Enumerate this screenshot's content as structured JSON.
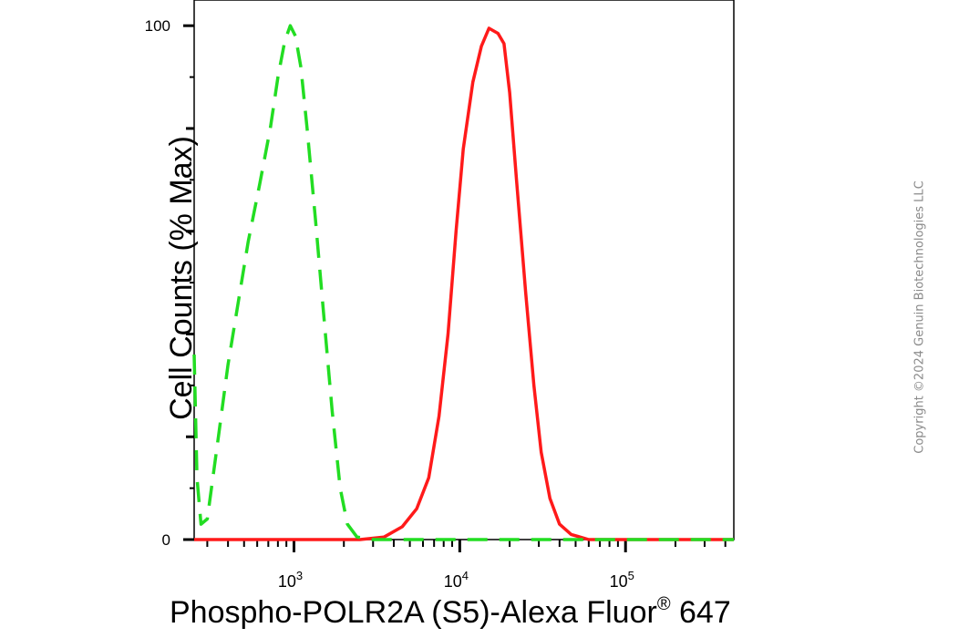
{
  "chart_data": {
    "type": "line",
    "title": "",
    "xlabel_main": "Phospho-POLR2A (S5)-Alexa Fluor",
    "xlabel_reg": "®",
    "xlabel_tail": " 647",
    "ylabel": "Cell Counts (% Max)",
    "x_scale": "log",
    "xlim": [
      250,
      450000
    ],
    "ylim": [
      0,
      105
    ],
    "yticks": [
      {
        "value": 0,
        "label": "0"
      },
      {
        "value": 100,
        "label": "100"
      }
    ],
    "xticks": [
      {
        "value": 1000,
        "base": "10",
        "exp": "3"
      },
      {
        "value": 10000,
        "base": "10",
        "exp": "4"
      },
      {
        "value": 100000,
        "base": "10",
        "exp": "5"
      }
    ],
    "grid": false,
    "series": [
      {
        "color": "#ff1a1a",
        "style": "solid",
        "points": [
          [
            250,
            0
          ],
          [
            1500,
            0
          ],
          [
            2500,
            0
          ],
          [
            3500,
            0.5
          ],
          [
            4500,
            2.5
          ],
          [
            5500,
            6
          ],
          [
            6500,
            12
          ],
          [
            7500,
            24
          ],
          [
            8500,
            40
          ],
          [
            9500,
            60
          ],
          [
            10500,
            76
          ],
          [
            12000,
            89
          ],
          [
            13500,
            96
          ],
          [
            15000,
            99.5
          ],
          [
            17000,
            98.5
          ],
          [
            18500,
            96.5
          ],
          [
            20000,
            87
          ],
          [
            22000,
            70
          ],
          [
            25000,
            48
          ],
          [
            28000,
            30
          ],
          [
            31000,
            17
          ],
          [
            35000,
            8
          ],
          [
            40000,
            3
          ],
          [
            47000,
            1
          ],
          [
            60000,
            0
          ],
          [
            100000,
            0
          ],
          [
            450000,
            0
          ]
        ]
      },
      {
        "color": "#22dd22",
        "style": "dashed",
        "points": [
          [
            250,
            36
          ],
          [
            260,
            12
          ],
          [
            275,
            3
          ],
          [
            300,
            4
          ],
          [
            350,
            20
          ],
          [
            400,
            34
          ],
          [
            460,
            46
          ],
          [
            530,
            58
          ],
          [
            620,
            69
          ],
          [
            720,
            80
          ],
          [
            800,
            90
          ],
          [
            880,
            97
          ],
          [
            950,
            100
          ],
          [
            1020,
            98
          ],
          [
            1100,
            92
          ],
          [
            1200,
            80
          ],
          [
            1350,
            62
          ],
          [
            1500,
            45
          ],
          [
            1700,
            25
          ],
          [
            1900,
            10
          ],
          [
            2100,
            3
          ],
          [
            2400,
            0.5
          ],
          [
            3000,
            0
          ],
          [
            10000,
            0
          ],
          [
            100000,
            0
          ],
          [
            450000,
            0
          ]
        ]
      }
    ]
  },
  "copyright": "Copyright ©2024 Genuin Biotechnologies LLC"
}
